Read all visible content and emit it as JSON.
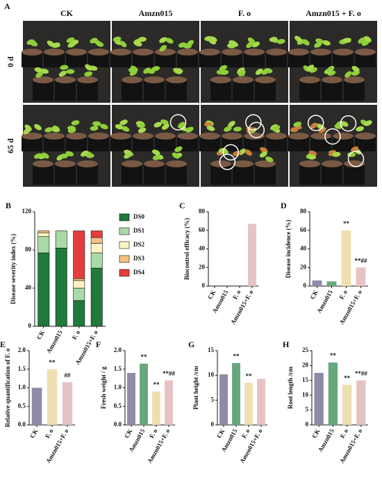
{
  "panel_a": {
    "label": "A",
    "columns": [
      "CK",
      "Amzn015",
      "F. o",
      "Amzn015 + F. o"
    ],
    "rows": [
      "0 d",
      "65 d"
    ]
  },
  "chart_data": [
    {
      "type": "stacked_bar",
      "panel": "B",
      "ylabel": "Disease severity index (%)",
      "categories": [
        "CK",
        "Amzn015",
        "F. o",
        "Amzn015+F. o"
      ],
      "ylim": [
        0,
        120
      ],
      "yticks": [
        0,
        40,
        80,
        120
      ],
      "series": [
        {
          "name": "DS0",
          "color": "#1f7a3c",
          "values": [
            77,
            82,
            27,
            61
          ]
        },
        {
          "name": "DS1",
          "color": "#a9d9a6",
          "values": [
            17,
            18,
            13,
            16
          ]
        },
        {
          "name": "DS2",
          "color": "#fbf3c2",
          "values": [
            4,
            0,
            8,
            10
          ]
        },
        {
          "name": "DS3",
          "color": "#f4c182",
          "values": [
            2,
            0,
            2,
            6
          ]
        },
        {
          "name": "DS4",
          "color": "#e53d3d",
          "values": [
            0,
            0,
            50,
            7
          ]
        }
      ]
    },
    {
      "type": "bar",
      "panel": "C",
      "ylabel": "Biocontrol efficacy (%)",
      "categories": [
        "CK",
        "Amzn015",
        "F. o",
        "Amzn015+F. o"
      ],
      "values": [
        0,
        0,
        0,
        67
      ],
      "colors": [
        "#8f8aa6",
        "#67a77e",
        "#efdfb0",
        "#e6c3c3"
      ],
      "ylim": [
        0,
        80
      ],
      "yticks": [
        0,
        20,
        40,
        60,
        80
      ]
    },
    {
      "type": "bar",
      "panel": "D",
      "ylabel": "Disease incidence (%)",
      "categories": [
        "CK",
        "Amzn015",
        "F. o",
        "Amzn015+F. o"
      ],
      "values": [
        6,
        5,
        60,
        20
      ],
      "colors": [
        "#8f8aa6",
        "#67a77e",
        "#efdfb0",
        "#e6c3c3"
      ],
      "annotations": [
        null,
        null,
        "**",
        "**##"
      ],
      "ylim": [
        0,
        80
      ],
      "yticks": [
        0,
        20,
        40,
        60,
        80
      ]
    },
    {
      "type": "bar",
      "panel": "E",
      "ylabel": "Relative quantification of F. o",
      "categories": [
        "CK",
        "F. o",
        "Amzn015+F. o"
      ],
      "values": [
        1.0,
        1.5,
        1.15
      ],
      "colors": [
        "#8f8aa6",
        "#efdfb0",
        "#e6c3c3"
      ],
      "annotations": [
        null,
        "**",
        "##"
      ],
      "ylim": [
        0,
        2
      ],
      "yticks": [
        {
          "value": 0,
          "label": "0.0"
        },
        0.5,
        {
          "value": 1,
          "label": "1.0"
        },
        1.5,
        {
          "value": 2,
          "label": "2.0"
        }
      ]
    },
    {
      "type": "bar",
      "panel": "F",
      "ylabel": "Fresh weight / g",
      "categories": [
        "CK",
        "Amzn015",
        "F. o",
        "Amzn015+F. o"
      ],
      "values": [
        1.4,
        1.65,
        0.9,
        1.2
      ],
      "colors": [
        "#8f8aa6",
        "#67a77e",
        "#efdfb0",
        "#e6c3c3"
      ],
      "annotations": [
        null,
        "**",
        "**",
        "**##"
      ],
      "ylim": [
        0,
        2
      ],
      "yticks": [
        {
          "value": 0,
          "label": "0.0"
        },
        0.5,
        {
          "value": 1,
          "label": "1.0"
        },
        1.5,
        {
          "value": 2,
          "label": "2.0"
        }
      ]
    },
    {
      "type": "bar",
      "panel": "G",
      "ylabel": "Plant height /cm",
      "categories": [
        "CK",
        "Amzn015",
        "F. o",
        "Amzn015+F. o"
      ],
      "values": [
        10.2,
        12.5,
        8.5,
        9.3
      ],
      "colors": [
        "#8f8aa6",
        "#67a77e",
        "#efdfb0",
        "#e6c3c3"
      ],
      "annotations": [
        null,
        "**",
        "**",
        null
      ],
      "ylim": [
        0,
        15
      ],
      "yticks": [
        0,
        5,
        10,
        15
      ]
    },
    {
      "type": "bar",
      "panel": "H",
      "ylabel": "Root length /cm",
      "categories": [
        "CK",
        "Amzn015",
        "F. o",
        "Amzn015+F. o"
      ],
      "values": [
        17.5,
        21,
        13.5,
        15
      ],
      "colors": [
        "#8f8aa6",
        "#67a77e",
        "#efdfb0",
        "#e6c3c3"
      ],
      "annotations": [
        null,
        "**",
        "**",
        "**##"
      ],
      "ylim": [
        0,
        25
      ],
      "yticks": [
        0,
        5,
        10,
        15,
        20,
        25
      ]
    }
  ]
}
